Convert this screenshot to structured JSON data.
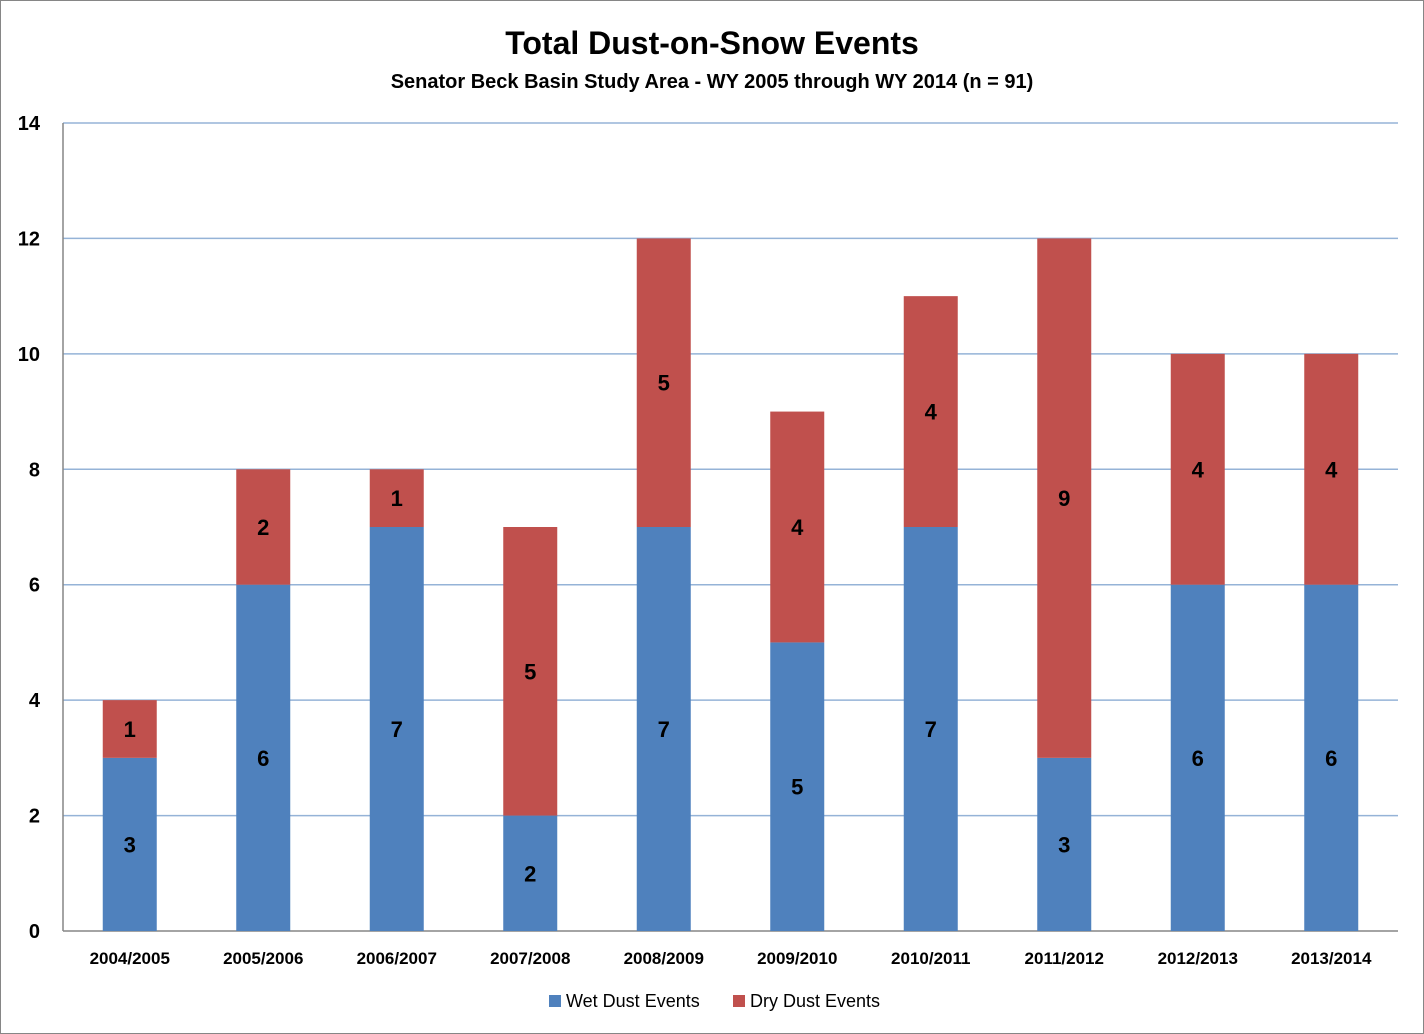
{
  "chart_data": {
    "type": "bar",
    "stacked": true,
    "title": "Total Dust-on-Snow Events",
    "subtitle": "Senator Beck Basin Study Area - WY 2005 through WY 2014 (n = 91)",
    "xlabel": "",
    "ylabel": "",
    "ylim": [
      0,
      14
    ],
    "yticks": [
      0,
      2,
      4,
      6,
      8,
      10,
      12,
      14
    ],
    "grid": true,
    "legend_position": "bottom",
    "categories": [
      "2004/2005",
      "2005/2006",
      "2006/2007",
      "2007/2008",
      "2008/2009",
      "2009/2010",
      "2010/2011",
      "2011/2012",
      "2012/2013",
      "2013/2014"
    ],
    "series": [
      {
        "name": "Wet Dust Events",
        "color": "#4f81bd",
        "values": [
          3,
          6,
          7,
          2,
          7,
          5,
          7,
          3,
          6,
          6
        ]
      },
      {
        "name": "Dry Dust Events",
        "color": "#c0504d",
        "values": [
          1,
          2,
          1,
          5,
          5,
          4,
          4,
          9,
          4,
          4
        ]
      }
    ]
  },
  "colors": {
    "gridline": "#95b3d7",
    "axis": "#868686"
  }
}
